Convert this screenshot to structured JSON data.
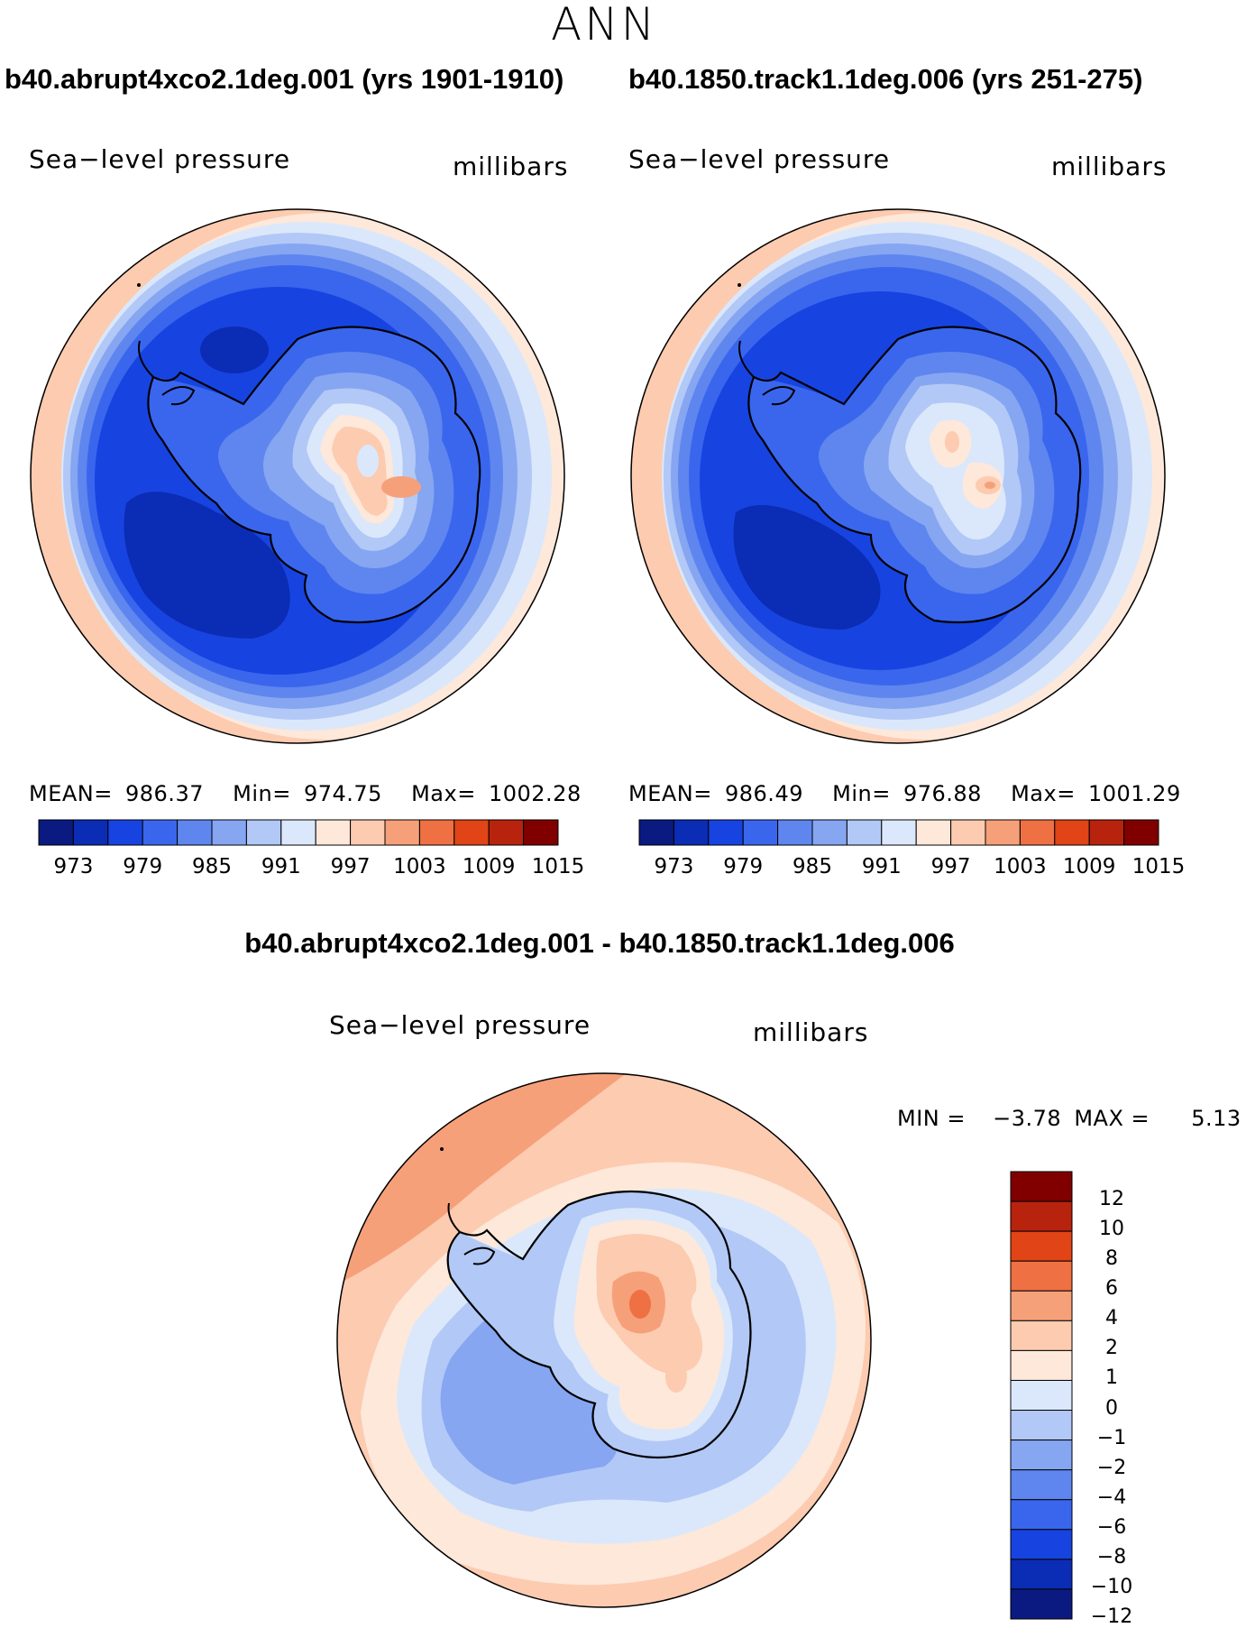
{
  "page_title": "ANN",
  "panels": [
    {
      "id": "case",
      "title": "b40.abrupt4xco2.1deg.001 (yrs 1901-1910)",
      "variable": "Sea−level pressure",
      "units": "millibars",
      "mean_label": "MEAN=",
      "mean_value": "986.37",
      "min_label": "Min=",
      "min_value": "974.75",
      "max_label": "Max=",
      "max_value": "1002.28"
    },
    {
      "id": "control",
      "title": "b40.1850.track1.1deg.006 (yrs 251-275)",
      "variable": "Sea−level pressure",
      "units": "millibars",
      "mean_label": "MEAN=",
      "mean_value": "986.49",
      "min_label": "Min=",
      "min_value": "976.88",
      "max_label": "Max=",
      "max_value": "1001.29"
    }
  ],
  "abs_colorbar": {
    "colors": [
      "#0a1a80",
      "#0b2cb4",
      "#1744e0",
      "#3a66ee",
      "#5e86ee",
      "#86a6f2",
      "#b2c8f6",
      "#dbe8fb",
      "#fde8da",
      "#fccbb0",
      "#f6a07a",
      "#ef7043",
      "#e14416",
      "#b8230d",
      "#800000"
    ],
    "ticks": [
      "973",
      "979",
      "985",
      "991",
      "997",
      "1003",
      "1009",
      "1015"
    ]
  },
  "diff_panel": {
    "title": "b40.abrupt4xco2.1deg.001 - b40.1850.track1.1deg.006",
    "variable": "Sea−level pressure",
    "units": "millibars",
    "min_label": "MIN =",
    "min_value": "−3.78",
    "max_label": "MAX =",
    "max_value": "5.13"
  },
  "diff_colorbar": {
    "colors": [
      "#800000",
      "#b8230d",
      "#e14416",
      "#ef7043",
      "#f6a07a",
      "#fccbb0",
      "#fde8da",
      "#dbe8fb",
      "#b2c8f6",
      "#86a6f2",
      "#5e86ee",
      "#3a66ee",
      "#1744e0",
      "#0b2cb4",
      "#0a1a80"
    ],
    "ticks": [
      "12",
      "10",
      "8",
      "6",
      "4",
      "2",
      "1",
      "0",
      "−1",
      "−2",
      "−4",
      "−6",
      "−8",
      "−10",
      "−12"
    ]
  }
}
